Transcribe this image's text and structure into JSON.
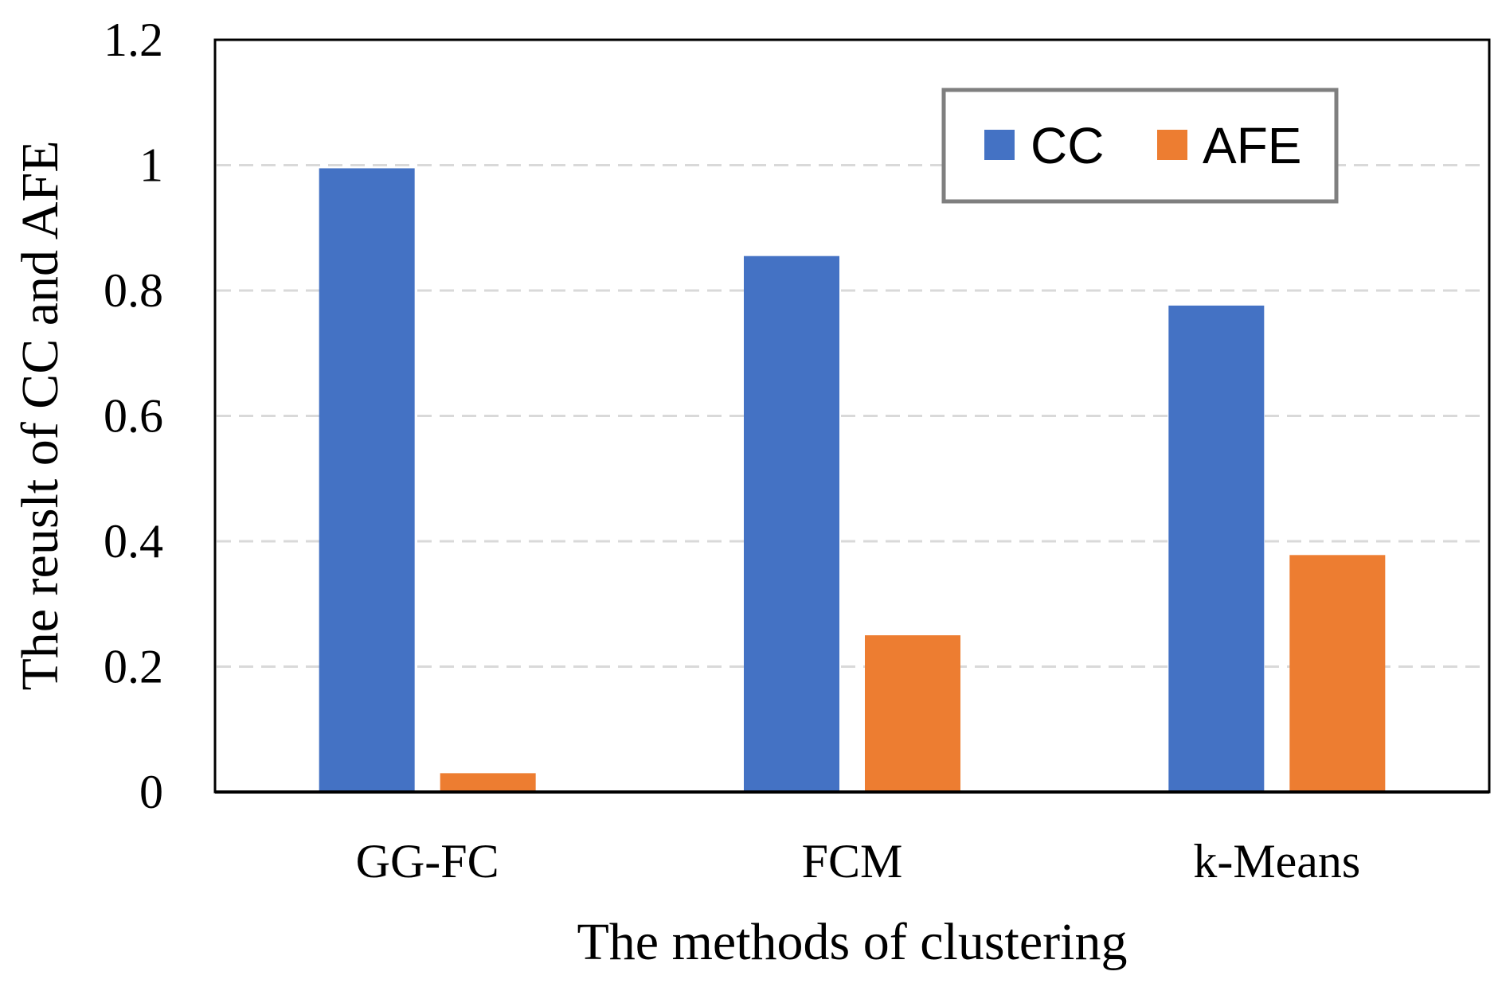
{
  "chart_data": {
    "type": "bar",
    "title": "",
    "categories": [
      "GG-FC",
      "FCM",
      "k-Means"
    ],
    "series": [
      {
        "name": "CC",
        "color": "#4472C4",
        "values": [
          0.995,
          0.855,
          0.776
        ]
      },
      {
        "name": "AFE",
        "color": "#ED7D31",
        "values": [
          0.03,
          0.25,
          0.378
        ]
      }
    ],
    "xlabel": "The methods of clustering",
    "ylabel": "The reuslt of CC and AFE",
    "ylim": [
      0,
      1.2
    ],
    "yticks": [
      "0",
      "0.2",
      "0.4",
      "0.6",
      "0.8",
      "1",
      "1.2"
    ],
    "grid": true,
    "legend_position": "top-right"
  }
}
